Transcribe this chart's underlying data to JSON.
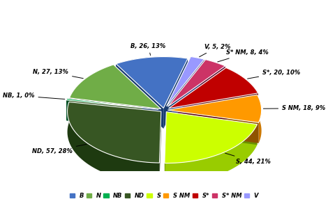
{
  "labels": [
    "B",
    "N",
    "NB",
    "ND",
    "S",
    "S NM",
    "S*",
    "S* NM",
    "V"
  ],
  "values": [
    26,
    27,
    1,
    57,
    44,
    18,
    20,
    8,
    5
  ],
  "percentages": [
    13,
    13,
    0,
    28,
    21,
    9,
    10,
    4,
    2
  ],
  "colors": [
    "#4472C4",
    "#70AD47",
    "#00B050",
    "#375623",
    "#CCFF00",
    "#FF9900",
    "#C00000",
    "#CC3366",
    "#9999FF"
  ],
  "dark_colors": [
    "#2255A0",
    "#4A8030",
    "#007030",
    "#1E3A10",
    "#99CC00",
    "#CC7700",
    "#800000",
    "#881144",
    "#6666BB"
  ],
  "explode": [
    0.04,
    0.04,
    0.06,
    0.04,
    0.04,
    0.04,
    0.06,
    0.08,
    0.08
  ],
  "legend_labels": [
    "B",
    "N",
    "NB",
    "ND",
    "S",
    "S NM",
    "S*",
    "S* NM",
    "V"
  ],
  "startangle": 75,
  "yscale": 0.55,
  "thickness": 0.22,
  "background_color": "#FFFFFF"
}
